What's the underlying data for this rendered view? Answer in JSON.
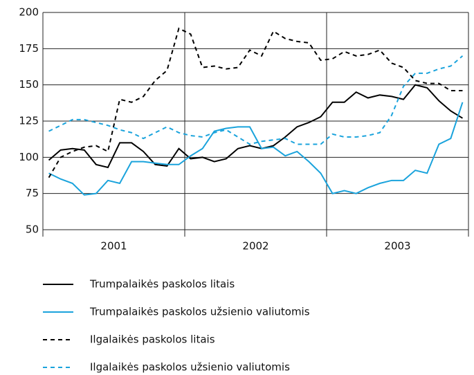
{
  "chart_data": {
    "type": "line",
    "categories": [
      null,
      null,
      null,
      null,
      null,
      "2001",
      null,
      null,
      null,
      null,
      null,
      null,
      null,
      null,
      null,
      null,
      null,
      "2002",
      null,
      null,
      null,
      null,
      null,
      null,
      null,
      null,
      null,
      null,
      null,
      "2003",
      null,
      null,
      null,
      null,
      null,
      null
    ],
    "series": [
      {
        "name": "Trumpalaikės paskolos litais",
        "color": "#000000",
        "dash": false,
        "values": [
          98,
          105,
          106,
          105,
          95,
          93,
          110,
          110,
          104,
          95,
          94,
          106,
          99,
          100,
          97,
          99,
          106,
          108,
          106,
          108,
          114,
          121,
          124,
          128,
          138,
          138,
          145,
          141,
          143,
          142,
          140,
          150,
          148,
          139,
          132,
          127
        ]
      },
      {
        "name": "Trumpalaikės paskolos užsienio valiutomis",
        "color": "#1aa3dc",
        "dash": false,
        "values": [
          89,
          85,
          82,
          74,
          75,
          84,
          82,
          97,
          97,
          96,
          95,
          95,
          101,
          106,
          118,
          120,
          121,
          121,
          106,
          107,
          101,
          104,
          97,
          89,
          75,
          77,
          75,
          79,
          82,
          84,
          84,
          91,
          89,
          109,
          113,
          138
        ]
      },
      {
        "name": "Ilgalaikės paskolos litais",
        "color": "#000000",
        "dash": true,
        "values": [
          86,
          100,
          104,
          107,
          108,
          104,
          140,
          138,
          142,
          153,
          160,
          189,
          185,
          162,
          163,
          161,
          162,
          174,
          170,
          187,
          182,
          180,
          179,
          167,
          168,
          173,
          170,
          171,
          174,
          165,
          162,
          153,
          151,
          151,
          146,
          146
        ]
      },
      {
        "name": "Ilgalaikės paskolos užsienio valiutomis",
        "color": "#1aa3dc",
        "dash": true,
        "values": [
          118,
          122,
          126,
          126,
          124,
          122,
          119,
          117,
          113,
          117,
          121,
          117,
          115,
          114,
          117,
          119,
          114,
          109,
          111,
          112,
          113,
          109,
          109,
          109,
          116,
          114,
          114,
          115,
          117,
          129,
          149,
          158,
          158,
          161,
          163,
          170
        ]
      }
    ],
    "ylim": [
      50,
      200
    ],
    "yticks": [
      50,
      75,
      100,
      125,
      150,
      175,
      200
    ],
    "grid": true
  }
}
